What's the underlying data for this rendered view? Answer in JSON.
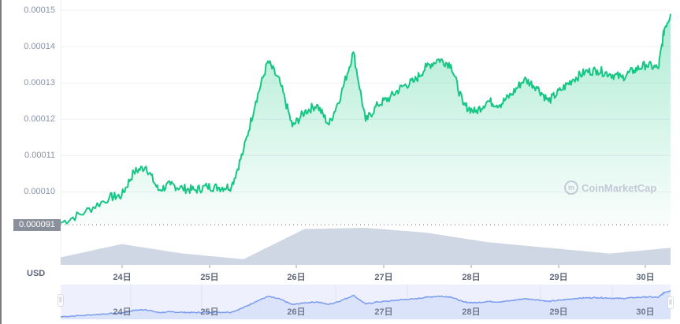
{
  "chart_data": {
    "type": "area",
    "title": "",
    "currency": "USD",
    "xlabel": "",
    "ylabel": "",
    "ylim": [
      9.1e-05,
      0.000151
    ],
    "y_ticks": [
      "0.00015",
      "0.00014",
      "0.00013",
      "0.00012",
      "0.00011",
      "0.00010"
    ],
    "baseline_value": "0.000091",
    "x_ticks": [
      "24日",
      "25日",
      "26日",
      "27日",
      "28日",
      "29日",
      "30日"
    ],
    "grid": true,
    "legend": null,
    "line_color": "#16c784",
    "volume_color": "#cfd6e4",
    "series": [
      {
        "name": "price",
        "x": [
          0,
          0.04,
          0.08,
          0.1,
          0.12,
          0.14,
          0.16,
          0.18,
          0.2,
          0.22,
          0.24,
          0.26,
          0.28,
          0.3,
          0.32,
          0.34,
          0.36,
          0.38,
          0.4,
          0.42,
          0.44,
          0.46,
          0.48,
          0.5,
          0.52,
          0.54,
          0.56,
          0.58,
          0.6,
          0.62,
          0.64,
          0.66,
          0.68,
          0.7,
          0.72,
          0.74,
          0.76,
          0.78,
          0.8,
          0.82,
          0.84,
          0.86,
          0.88,
          0.9,
          0.92,
          0.94,
          0.96,
          0.98,
          0.99,
          1.0
        ],
        "values": [
          9.15e-05,
          9.45e-05,
          9.85e-05,
          9.9e-05,
          0.0001055,
          0.000107,
          0.0001005,
          0.000102,
          0.000101,
          0.0001005,
          0.0001015,
          0.0001012,
          0.0001015,
          0.0001115,
          0.000125,
          0.000136,
          0.00013,
          0.000118,
          0.000122,
          0.000124,
          0.0001185,
          0.000127,
          0.0001385,
          0.0001195,
          0.000124,
          0.000126,
          0.000129,
          0.0001305,
          0.0001345,
          0.0001365,
          0.000135,
          0.000124,
          0.000122,
          0.000125,
          0.000124,
          0.000127,
          0.000131,
          0.000129,
          0.000125,
          0.000128,
          0.000131,
          0.000133,
          0.0001335,
          0.0001325,
          0.0001315,
          0.0001335,
          0.000135,
          0.000134,
          0.000145,
          0.000149
        ]
      },
      {
        "name": "volume",
        "x": [
          0,
          0.1,
          0.2,
          0.3,
          0.4,
          0.5,
          0.6,
          0.7,
          0.8,
          0.9,
          1.0
        ],
        "values_relative": [
          0.2,
          0.55,
          0.3,
          0.15,
          0.95,
          0.98,
          0.85,
          0.6,
          0.45,
          0.3,
          0.45
        ]
      }
    ]
  },
  "axis": {
    "y_labels": [
      "0.00015",
      "0.00014",
      "0.00013",
      "0.00012",
      "0.00011",
      "0.00010"
    ],
    "baseline_label": "0.000091",
    "currency_label": "USD",
    "x_labels": [
      "24日",
      "25日",
      "26日",
      "27日",
      "28日",
      "29日",
      "30日"
    ]
  },
  "navigator": {
    "labels": [
      "24日",
      "25日",
      "26日",
      "27日",
      "28日",
      "29日",
      "30日"
    ],
    "left_handle": "||",
    "right_handle": "||"
  },
  "watermark": {
    "logo": "m",
    "text": "CoinMarketCap"
  }
}
